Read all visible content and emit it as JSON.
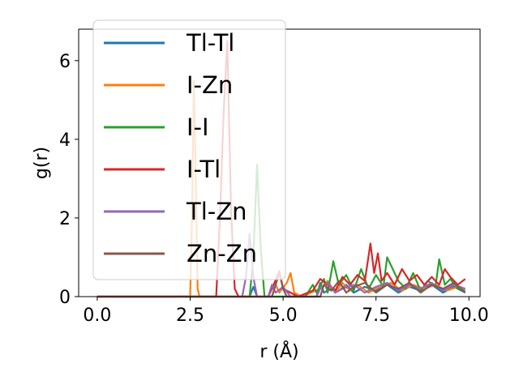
{
  "chart_data": {
    "type": "line",
    "xlabel": "r (Å)",
    "ylabel": "g(r)",
    "xlim": [
      -0.5,
      10.3
    ],
    "ylim": [
      0,
      6.8
    ],
    "xticks": [
      0.0,
      2.5,
      5.0,
      7.5,
      10.0
    ],
    "xtick_labels": [
      "0.0",
      "2.5",
      "5.0",
      "7.5",
      "10.0"
    ],
    "yticks": [
      0,
      2,
      4,
      6
    ],
    "ytick_labels": [
      "0",
      "2",
      "4",
      "6"
    ],
    "grid": false,
    "legend_position": "upper-left",
    "series": [
      {
        "name": "Tl-Tl",
        "color": "#1f77b4",
        "points": [
          [
            0,
            0
          ],
          [
            4.1,
            0
          ],
          [
            4.2,
            0.25
          ],
          [
            4.3,
            0
          ],
          [
            5.9,
            0
          ],
          [
            6.0,
            0.35
          ],
          [
            6.1,
            0.1
          ],
          [
            6.3,
            0.2
          ],
          [
            6.5,
            0.15
          ],
          [
            6.7,
            0.3
          ],
          [
            6.9,
            0.1
          ],
          [
            7.2,
            0.25
          ],
          [
            7.5,
            0.15
          ],
          [
            7.8,
            0.3
          ],
          [
            8.1,
            0.1
          ],
          [
            8.4,
            0.25
          ],
          [
            8.7,
            0.15
          ],
          [
            9.0,
            0.3
          ],
          [
            9.3,
            0.1
          ],
          [
            9.6,
            0.25
          ],
          [
            9.9,
            0.1
          ]
        ]
      },
      {
        "name": "I-Zn",
        "color": "#ff7f0e",
        "points": [
          [
            0,
            0
          ],
          [
            2.5,
            0
          ],
          [
            2.55,
            2.0
          ],
          [
            2.6,
            5.5
          ],
          [
            2.65,
            3.0
          ],
          [
            2.7,
            0.2
          ],
          [
            2.75,
            0
          ],
          [
            4.7,
            0
          ],
          [
            4.8,
            0.3
          ],
          [
            4.9,
            0.1
          ],
          [
            5.1,
            0.35
          ],
          [
            5.2,
            0.6
          ],
          [
            5.3,
            0.1
          ],
          [
            5.5,
            0
          ],
          [
            6.0,
            0.2
          ],
          [
            6.2,
            0.4
          ],
          [
            6.4,
            0.1
          ],
          [
            6.6,
            0.35
          ],
          [
            6.8,
            0.15
          ],
          [
            7.0,
            0.3
          ],
          [
            7.3,
            0.1
          ],
          [
            7.6,
            0.25
          ],
          [
            7.9,
            0.35
          ],
          [
            8.2,
            0.15
          ],
          [
            8.5,
            0.3
          ],
          [
            8.8,
            0.2
          ],
          [
            9.1,
            0.3
          ],
          [
            9.4,
            0.15
          ],
          [
            9.7,
            0.25
          ],
          [
            9.9,
            0.2
          ]
        ]
      },
      {
        "name": "I-I",
        "color": "#2ca02c",
        "points": [
          [
            0,
            0
          ],
          [
            4.1,
            0
          ],
          [
            4.2,
            1.0
          ],
          [
            4.3,
            3.35
          ],
          [
            4.4,
            1.2
          ],
          [
            4.5,
            0
          ],
          [
            5.6,
            0
          ],
          [
            5.8,
            0.3
          ],
          [
            5.9,
            0.1
          ],
          [
            6.1,
            0.45
          ],
          [
            6.2,
            0.1
          ],
          [
            6.35,
            0.9
          ],
          [
            6.5,
            0.3
          ],
          [
            6.7,
            0.55
          ],
          [
            6.9,
            0.15
          ],
          [
            7.1,
            0.7
          ],
          [
            7.3,
            0.2
          ],
          [
            7.5,
            0.55
          ],
          [
            7.7,
            0.25
          ],
          [
            7.8,
            1.0
          ],
          [
            7.95,
            0.7
          ],
          [
            8.1,
            0.4
          ],
          [
            8.3,
            0.2
          ],
          [
            8.5,
            0.6
          ],
          [
            8.7,
            0.15
          ],
          [
            8.9,
            0.4
          ],
          [
            9.1,
            0.25
          ],
          [
            9.2,
            0.95
          ],
          [
            9.35,
            0.3
          ],
          [
            9.5,
            0.45
          ],
          [
            9.7,
            0.2
          ],
          [
            9.9,
            0.15
          ]
        ]
      },
      {
        "name": "I-Tl",
        "color": "#d62728",
        "points": [
          [
            0,
            0
          ],
          [
            3.2,
            0
          ],
          [
            3.3,
            2.0
          ],
          [
            3.4,
            4.7
          ],
          [
            3.5,
            6.5
          ],
          [
            3.6,
            2.2
          ],
          [
            3.7,
            0.2
          ],
          [
            3.8,
            0
          ],
          [
            4.6,
            0
          ],
          [
            4.7,
            0.2
          ],
          [
            4.9,
            0.65
          ],
          [
            5.0,
            0.2
          ],
          [
            5.2,
            0.1
          ],
          [
            5.4,
            0
          ],
          [
            5.8,
            0.15
          ],
          [
            6.0,
            0.45
          ],
          [
            6.2,
            0.3
          ],
          [
            6.4,
            0.15
          ],
          [
            6.6,
            0.5
          ],
          [
            6.8,
            0.3
          ],
          [
            7.0,
            0.55
          ],
          [
            7.2,
            0.4
          ],
          [
            7.35,
            1.35
          ],
          [
            7.45,
            0.6
          ],
          [
            7.55,
            1.1
          ],
          [
            7.65,
            0.4
          ],
          [
            7.8,
            0.6
          ],
          [
            8.0,
            0.3
          ],
          [
            8.2,
            0.7
          ],
          [
            8.4,
            0.4
          ],
          [
            8.6,
            0.55
          ],
          [
            8.8,
            0.3
          ],
          [
            9.0,
            0.5
          ],
          [
            9.2,
            0.3
          ],
          [
            9.35,
            0.7
          ],
          [
            9.5,
            0.5
          ],
          [
            9.7,
            0.3
          ],
          [
            9.9,
            0.45
          ]
        ]
      },
      {
        "name": "Tl-Zn",
        "color": "#9467bd",
        "points": [
          [
            0,
            0
          ],
          [
            3.9,
            0
          ],
          [
            4.0,
            0.5
          ],
          [
            4.1,
            1.6
          ],
          [
            4.2,
            0.5
          ],
          [
            4.3,
            0
          ],
          [
            4.6,
            0
          ],
          [
            4.7,
            0.3
          ],
          [
            4.8,
            0.1
          ],
          [
            5.0,
            0.25
          ],
          [
            5.2,
            0
          ],
          [
            5.9,
            0
          ],
          [
            6.0,
            0.2
          ],
          [
            6.2,
            0.35
          ],
          [
            6.4,
            0.1
          ],
          [
            6.6,
            0.2
          ],
          [
            6.9,
            0.3
          ],
          [
            7.2,
            0.1
          ],
          [
            7.5,
            0.25
          ],
          [
            7.8,
            0.35
          ],
          [
            8.1,
            0.15
          ],
          [
            8.4,
            0.3
          ],
          [
            8.7,
            0.2
          ],
          [
            9.0,
            0.35
          ],
          [
            9.3,
            0.15
          ],
          [
            9.6,
            0.3
          ],
          [
            9.9,
            0.2
          ]
        ]
      },
      {
        "name": "Zn-Zn",
        "color": "#8c564b",
        "points": [
          [
            0,
            0
          ],
          [
            4.7,
            0
          ],
          [
            4.8,
            0.3
          ],
          [
            4.9,
            0.6
          ],
          [
            5.0,
            0.2
          ],
          [
            5.1,
            0
          ],
          [
            6.0,
            0
          ],
          [
            6.1,
            0.3
          ],
          [
            6.3,
            0.15
          ],
          [
            6.5,
            0.4
          ],
          [
            6.7,
            0.1
          ],
          [
            6.9,
            0.25
          ],
          [
            7.2,
            0.35
          ],
          [
            7.5,
            0.1
          ],
          [
            7.8,
            0.3
          ],
          [
            8.1,
            0.2
          ],
          [
            8.4,
            0.35
          ],
          [
            8.7,
            0.1
          ],
          [
            9.0,
            0.3
          ],
          [
            9.3,
            0.2
          ],
          [
            9.6,
            0.35
          ],
          [
            9.9,
            0.1
          ]
        ]
      }
    ]
  }
}
